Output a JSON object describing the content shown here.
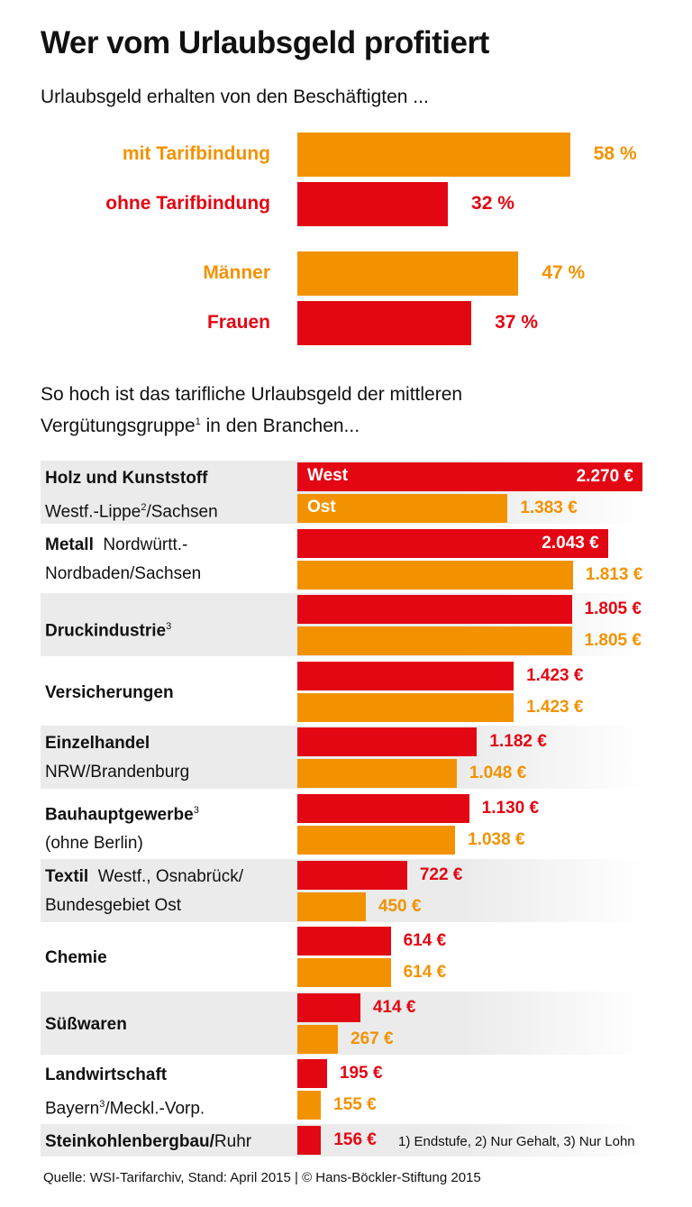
{
  "title": "Wer vom Urlaubsgeld profitiert",
  "subtitle1": "Urlaubsgeld erhalten von den Beschäftigten ...",
  "subtitle2_line1": "So hoch ist das tarifliche Urlaubsgeld der mittleren",
  "subtitle2_line2_a": "Vergütungsgruppe",
  "subtitle2_sup": "1",
  "subtitle2_line2_b": " in den Branchen...",
  "colors": {
    "orange": "#f39200",
    "red": "#e30613",
    "band": "#ebebeb"
  },
  "legend": {
    "west": "West",
    "ost": "Ost"
  },
  "footnotes": "1) Endstufe, 2) Nur Gehalt, 3) Nur Lohn",
  "source": "Quelle: WSI-Tarifarchiv, Stand: April 2015 | © Hans-Böckler-Stiftung 2015",
  "chart_data": [
    {
      "type": "bar",
      "orientation": "horizontal",
      "unit": "%",
      "categories": [
        "mit Tarifbindung",
        "ohne Tarifbindung",
        "Männer",
        "Frauen"
      ],
      "values": [
        58,
        32,
        47,
        37
      ],
      "value_labels": [
        "58 %",
        "32 %",
        "47 %",
        "37 %"
      ],
      "bar_colors": [
        "orange",
        "red",
        "orange",
        "red"
      ]
    },
    {
      "type": "bar",
      "orientation": "horizontal",
      "unit": "€",
      "series": [
        {
          "name": "West",
          "color": "red"
        },
        {
          "name": "Ost",
          "color": "orange"
        }
      ],
      "groups": [
        {
          "bold": "Holz und Kunststoff",
          "line2": "Westf.-Lippe",
          "sup2": "2",
          "line2b": "/Sachsen",
          "west": 2270,
          "ost": 1383,
          "west_label": "2.270 €",
          "ost_label": "1.383 €"
        },
        {
          "bold": "Metall",
          "rest1": "  Nordwürtt.-",
          "line2": "Nordbaden/Sachsen",
          "west": 2043,
          "ost": 1813,
          "west_label": "2.043 €",
          "ost_label": "1.813 €"
        },
        {
          "bold": "Druckindustrie",
          "sup": "3",
          "west": 1805,
          "ost": 1805,
          "west_label": "1.805 €",
          "ost_label": "1.805 €"
        },
        {
          "bold": "Versicherungen",
          "west": 1423,
          "ost": 1423,
          "west_label": "1.423 €",
          "ost_label": "1.423 €"
        },
        {
          "bold": "Einzelhandel",
          "line2": "NRW/Brandenburg",
          "west": 1182,
          "ost": 1048,
          "west_label": "1.182 €",
          "ost_label": "1.048 €"
        },
        {
          "bold": "Bauhauptgewerbe",
          "sup": "3",
          "line2": "(ohne Berlin)",
          "west": 1130,
          "ost": 1038,
          "west_label": "1.130 €",
          "ost_label": "1.038 €"
        },
        {
          "bold": "Textil",
          "rest1": "  Westf., Osnabrück/",
          "line2": "Bundesgebiet Ost",
          "west": 722,
          "ost": 450,
          "west_label": "722 €",
          "ost_label": "450 €"
        },
        {
          "bold": "Chemie",
          "west": 614,
          "ost": 614,
          "west_label": "614 €",
          "ost_label": "614 €"
        },
        {
          "bold": "Süßwaren",
          "west": 414,
          "ost": 267,
          "west_label": "414 €",
          "ost_label": "267 €"
        },
        {
          "bold": "Landwirtschaft",
          "line2": "Bayern",
          "sup2": "3",
          "line2b": "/Meckl.-Vorp.",
          "west": 195,
          "ost": 155,
          "west_label": "195 €",
          "ost_label": "155 €"
        },
        {
          "bold": "Steinkohlenbergbau/",
          "rest1": "Ruhr",
          "west": 156,
          "west_label": "156 €"
        }
      ]
    }
  ]
}
